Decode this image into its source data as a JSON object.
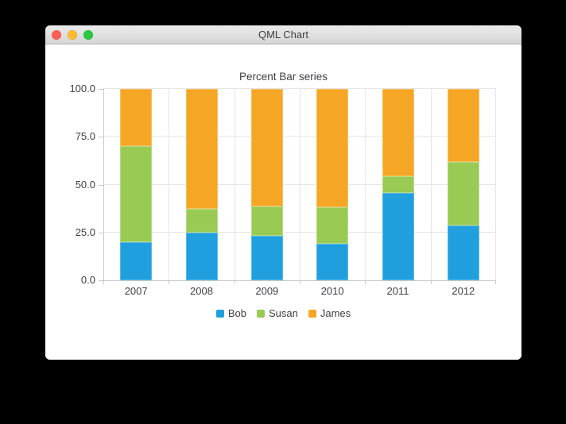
{
  "window": {
    "title": "QML Chart",
    "controls": [
      {
        "name": "close",
        "color": "#ff5f57"
      },
      {
        "name": "minimize",
        "color": "#febc2e"
      },
      {
        "name": "zoom",
        "color": "#28c840"
      }
    ]
  },
  "chart_data": {
    "type": "bar",
    "variant": "percent-stacked",
    "title": "Percent Bar series",
    "categories": [
      "2007",
      "2008",
      "2009",
      "2010",
      "2011",
      "2012"
    ],
    "series": [
      {
        "name": "Bob",
        "color": "#209fdf",
        "border_color": "#5ab9e7",
        "values": [
          20.0,
          25.0,
          23.1,
          19.0,
          45.5,
          28.6
        ]
      },
      {
        "name": "Susan",
        "color": "#99ca53",
        "border_color": "#b7da84",
        "values": [
          50.0,
          12.5,
          15.4,
          19.0,
          9.1,
          33.3
        ]
      },
      {
        "name": "James",
        "color": "#f6a625",
        "border_color": "#f8c05e",
        "values": [
          30.0,
          62.5,
          61.5,
          62.0,
          45.5,
          38.1
        ]
      }
    ],
    "y_ticks": [
      0,
      25,
      50,
      75,
      100
    ],
    "y_tick_labels": [
      "0.0",
      "25.0",
      "50.0",
      "75.0",
      "100.0"
    ],
    "ylim": [
      0,
      100
    ],
    "unit": "percent",
    "grid": true,
    "legend_position": "bottom"
  },
  "theme": {
    "text_color": "#404044",
    "grid_color": "#e6e6e6",
    "axis_color": "#c9c9c9",
    "window_bg": "#ffffff",
    "desktop_bg": "#000000"
  }
}
